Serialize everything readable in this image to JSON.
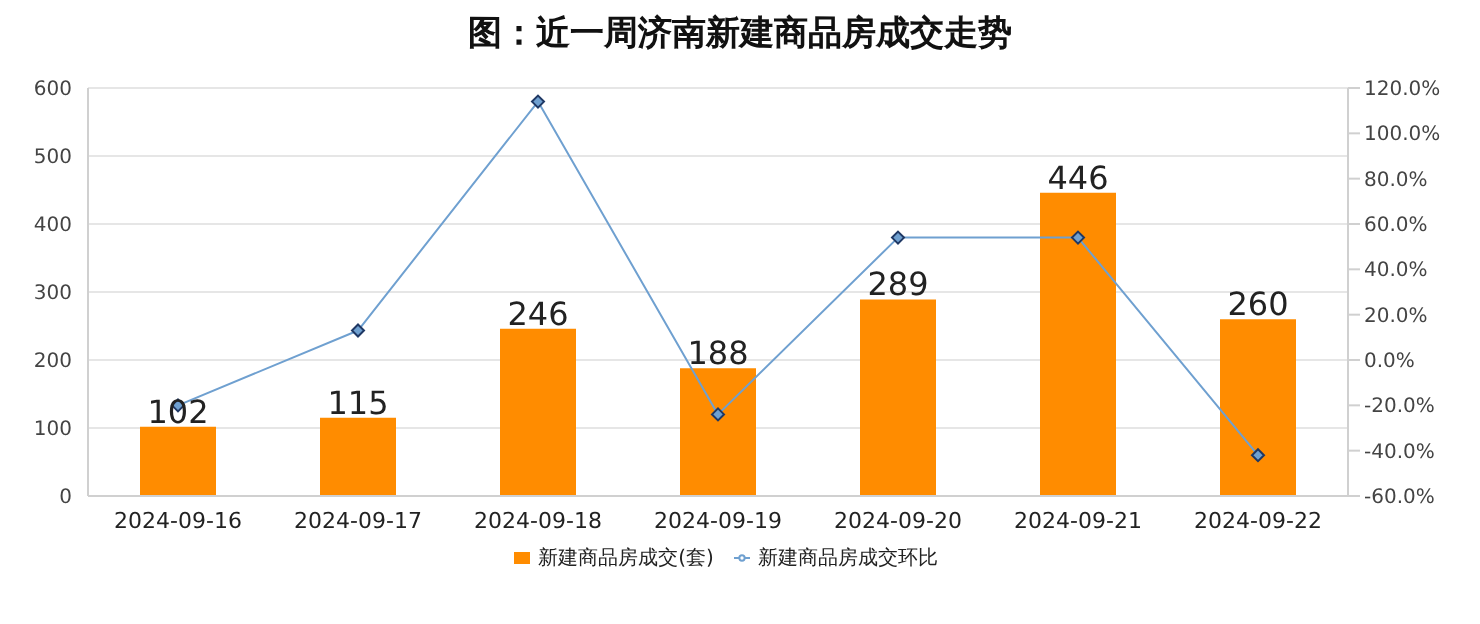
{
  "chart_data": {
    "type": "bar",
    "title": "图：近一周济南新建商品房成交走势",
    "categories": [
      "2024-09-16",
      "2024-09-17",
      "2024-09-18",
      "2024-09-19",
      "2024-09-20",
      "2024-09-21",
      "2024-09-22"
    ],
    "series": [
      {
        "name": "新建商品房成交(套)",
        "color": "#ff8c00",
        "values": [
          102,
          115,
          246,
          188,
          289,
          446,
          260
        ],
        "value_labels": [
          "102",
          "115",
          "246",
          "188",
          "289",
          "446",
          "260"
        ]
      },
      {
        "name": "新建商品房成交环比",
        "type": "line",
        "axis": "y2",
        "color": "#6fa0d0",
        "marker": "diamond",
        "values": [
          -20,
          13,
          114,
          -24,
          54,
          54,
          -42
        ]
      }
    ],
    "ylim": [
      0,
      600
    ],
    "yticks": [
      0,
      100,
      200,
      300,
      400,
      500,
      600
    ],
    "y2lim": [
      -60,
      120
    ],
    "y2ticks": [
      {
        "value": -60,
        "label": "-60.0%"
      },
      {
        "value": -40,
        "label": "-40.0%"
      },
      {
        "value": -20,
        "label": "-20.0%"
      },
      {
        "value": 0,
        "label": "0.0%"
      },
      {
        "value": 20,
        "label": "20.0%"
      },
      {
        "value": 40,
        "label": "40.0%"
      },
      {
        "value": 60,
        "label": "60.0%"
      },
      {
        "value": 80,
        "label": "80.0%"
      },
      {
        "value": 100,
        "label": "100.0%"
      },
      {
        "value": 120,
        "label": "120.0%"
      }
    ],
    "grid": "y",
    "legend": "bottom"
  }
}
